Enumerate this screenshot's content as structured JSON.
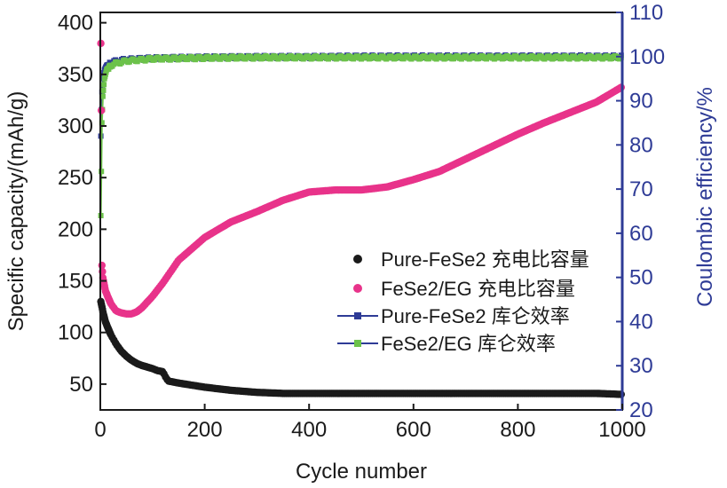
{
  "chart_data": {
    "type": "scatter",
    "title": "",
    "xlabel": "Cycle number",
    "ylabel": "Specific capacity/(mAh/g)",
    "y2label": "Coulombic efficiency/%",
    "xlim": [
      0,
      1000
    ],
    "ylim": [
      25,
      410
    ],
    "y2lim": [
      20,
      110
    ],
    "x_ticks": [
      "0",
      "200",
      "400",
      "600",
      "800",
      "1000"
    ],
    "y_ticks": [
      "50",
      "100",
      "150",
      "200",
      "250",
      "300",
      "350",
      "400"
    ],
    "y2_ticks": [
      "20",
      "30",
      "40",
      "50",
      "60",
      "70",
      "80",
      "90",
      "100",
      "110"
    ],
    "colors": {
      "pure_capacity": "#1a1a1a",
      "eg_capacity": "#e8338a",
      "pure_ce": "#2e3b96",
      "eg_ce": "#6cc24a",
      "right_axis": "#2e3b96"
    },
    "series": [
      {
        "name": "Pure-FeSe2 充电比容量",
        "axis": "left",
        "marker": "circle",
        "x": [
          1,
          5,
          10,
          20,
          30,
          40,
          50,
          60,
          70,
          80,
          100,
          110,
          120,
          125,
          130,
          140,
          150,
          200,
          250,
          300,
          350,
          400,
          450,
          500,
          550,
          600,
          650,
          700,
          750,
          800,
          850,
          900,
          950,
          1000
        ],
        "values": [
          130,
          120,
          110,
          98,
          89,
          82,
          77,
          73,
          70,
          68,
          65,
          63,
          62,
          57,
          53,
          52,
          51,
          47,
          44,
          42,
          41,
          41,
          41,
          41,
          41,
          41,
          41,
          41,
          41,
          41,
          41,
          41,
          41,
          40
        ]
      },
      {
        "name": "FeSe2/EG 充电比容量",
        "axis": "left",
        "marker": "circle",
        "x": [
          1,
          2,
          3,
          5,
          10,
          20,
          30,
          40,
          50,
          60,
          70,
          80,
          100,
          120,
          150,
          200,
          250,
          300,
          350,
          400,
          450,
          500,
          550,
          600,
          650,
          700,
          750,
          800,
          850,
          900,
          950,
          1000
        ],
        "values": [
          380,
          315,
          165,
          153,
          140,
          128,
          121,
          119,
          118,
          118,
          120,
          124,
          135,
          148,
          170,
          192,
          207,
          217,
          228,
          236,
          238,
          238,
          241,
          248,
          256,
          268,
          280,
          292,
          303,
          313,
          323,
          338
        ]
      },
      {
        "name": "Pure-FeSe2 库仑效率",
        "axis": "right",
        "marker": "square",
        "x": [
          1,
          2,
          3,
          5,
          8,
          12,
          20,
          30,
          50,
          80,
          100,
          150,
          200,
          300,
          400,
          500,
          600,
          700,
          800,
          900,
          1000
        ],
        "values": [
          82,
          88,
          92,
          95,
          97,
          98,
          98.5,
          99,
          99.3,
          99.5,
          99.6,
          99.7,
          99.8,
          99.9,
          99.9,
          100,
          100,
          100,
          100,
          100,
          100
        ]
      },
      {
        "name": "FeSe2/EG 库仑效率",
        "axis": "right",
        "marker": "square",
        "x": [
          1,
          2,
          3,
          5,
          8,
          12,
          20,
          30,
          50,
          80,
          100,
          150,
          200,
          300,
          400,
          500,
          600,
          700,
          800,
          900,
          1000
        ],
        "values": [
          64,
          74,
          85,
          91,
          95,
          97,
          98,
          98.5,
          99,
          99.3,
          99.5,
          99.6,
          99.7,
          99.8,
          99.8,
          99.8,
          99.8,
          99.8,
          99.8,
          99.8,
          99.8
        ]
      }
    ]
  }
}
